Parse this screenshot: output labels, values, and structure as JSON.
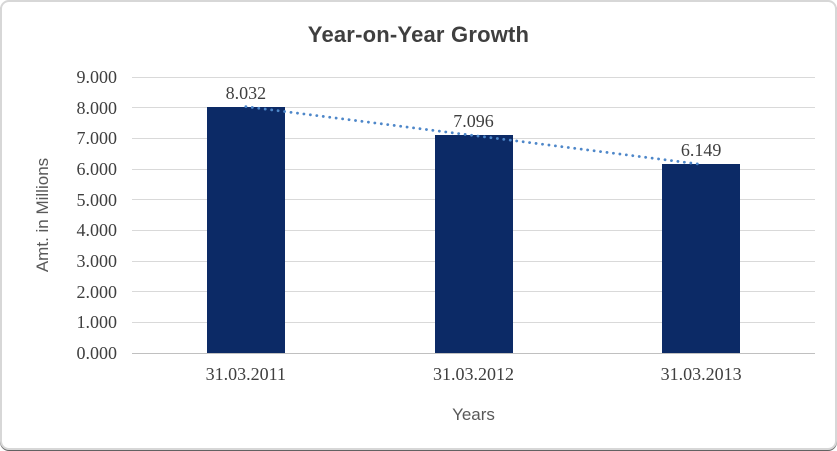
{
  "chart_data": {
    "type": "bar",
    "title": "Year-on-Year Growth",
    "xlabel": "Years",
    "ylabel": "Amt. in Millions",
    "categories": [
      "31.03.2011",
      "31.03.2012",
      "31.03.2013"
    ],
    "values": [
      8.032,
      7.096,
      6.149
    ],
    "data_labels": [
      "8.032",
      "7.096",
      "6.149"
    ],
    "ylim": [
      0,
      9
    ],
    "ytick_step": 1,
    "ytick_labels": [
      "0.000",
      "1.000",
      "2.000",
      "3.000",
      "4.000",
      "5.000",
      "6.000",
      "7.000",
      "8.000",
      "9.000"
    ],
    "grid": true,
    "legend": "none",
    "trendline": {
      "type": "linear",
      "style": "dotted",
      "endpoints": [
        8.034,
        6.151
      ],
      "color": "#4e87c9"
    },
    "colors": {
      "bar": "#0c2a66",
      "gridline": "#d9d9d9",
      "axis_line": "#c0c0c0",
      "title_text": "#3f3f3f",
      "tick_text": "#3f3f3f",
      "axis_title_text": "#595959",
      "chart_border": "#d7d7d7",
      "background": "#ffffff"
    }
  }
}
